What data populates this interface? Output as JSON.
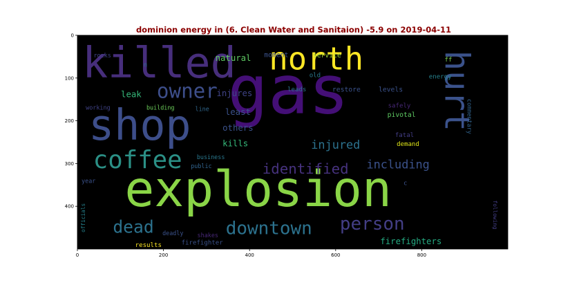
{
  "chart_data": {
    "type": "wordcloud",
    "title": "dominion energy in (6. Clean Water and Sanitaion) -5.9 on 2019-04-11",
    "title_color": "#8b0000",
    "background_color": "#000000",
    "xlim": [
      0,
      1000
    ],
    "ylim": [
      500,
      0
    ],
    "x_ticks": [
      0,
      200,
      400,
      600,
      800
    ],
    "y_ticks": [
      0,
      100,
      200,
      300,
      400
    ],
    "words": [
      {
        "text": "gas",
        "color": "#440f76",
        "x": 490,
        "y": 128,
        "size": 150
      },
      {
        "text": "explosion",
        "color": "#8ad547",
        "x": 420,
        "y": 360,
        "size": 110
      },
      {
        "text": "killed",
        "color": "#472e7c",
        "x": 190,
        "y": 65,
        "size": 95
      },
      {
        "text": "shop",
        "color": "#3d4e8a",
        "x": 145,
        "y": 210,
        "size": 95
      },
      {
        "text": "north",
        "color": "#fde725",
        "x": 555,
        "y": 55,
        "size": 70
      },
      {
        "text": "hurt",
        "color": "#3b528b",
        "x": 880,
        "y": 130,
        "size": 75,
        "rotate": 90
      },
      {
        "text": "coffee",
        "color": "#2b9086",
        "x": 140,
        "y": 292,
        "size": 55
      },
      {
        "text": "owner",
        "color": "#3d4e8a",
        "x": 255,
        "y": 130,
        "size": 45
      },
      {
        "text": "dead",
        "color": "#2c728e",
        "x": 130,
        "y": 448,
        "size": 38
      },
      {
        "text": "downtown",
        "color": "#2c728e",
        "x": 445,
        "y": 452,
        "size": 40
      },
      {
        "text": "person",
        "color": "#433e85",
        "x": 685,
        "y": 442,
        "size": 40
      },
      {
        "text": "identified",
        "color": "#46327e",
        "x": 530,
        "y": 312,
        "size": 32
      },
      {
        "text": "injured",
        "color": "#2c728e",
        "x": 600,
        "y": 256,
        "size": 26
      },
      {
        "text": "including",
        "color": "#3b528b",
        "x": 745,
        "y": 302,
        "size": 26
      },
      {
        "text": "firefighters",
        "color": "#25ab82",
        "x": 775,
        "y": 482,
        "size": 19
      },
      {
        "text": "injures",
        "color": "#404387",
        "x": 365,
        "y": 136,
        "size": 19
      },
      {
        "text": "natural",
        "color": "#5ec962",
        "x": 362,
        "y": 53,
        "size": 19
      },
      {
        "text": "least",
        "color": "#3b528b",
        "x": 373,
        "y": 180,
        "size": 19
      },
      {
        "text": "others",
        "color": "#3b528b",
        "x": 373,
        "y": 217,
        "size": 19
      },
      {
        "text": "kills",
        "color": "#35b779",
        "x": 367,
        "y": 253,
        "size": 19
      },
      {
        "text": "leak",
        "color": "#35b779",
        "x": 125,
        "y": 138,
        "size": 19
      },
      {
        "text": "moment",
        "color": "#3b528b",
        "x": 462,
        "y": 47,
        "size": 15
      },
      {
        "text": "service",
        "color": "#a0da39",
        "x": 580,
        "y": 48,
        "size": 15
      },
      {
        "text": "old",
        "color": "#2a788e",
        "x": 552,
        "y": 95,
        "size": 14
      },
      {
        "text": "leads",
        "color": "#2c728e",
        "x": 510,
        "y": 128,
        "size": 14
      },
      {
        "text": "restore",
        "color": "#3b528b",
        "x": 625,
        "y": 128,
        "size": 15
      },
      {
        "text": "levels",
        "color": "#3b528b",
        "x": 728,
        "y": 128,
        "size": 15
      },
      {
        "text": "ff",
        "color": "#7ad151",
        "x": 862,
        "y": 58,
        "size": 14
      },
      {
        "text": "energy",
        "color": "#26828e",
        "x": 843,
        "y": 98,
        "size": 14
      },
      {
        "text": "commentary",
        "color": "#32648e",
        "x": 911,
        "y": 190,
        "size": 13,
        "rotate": 90
      },
      {
        "text": "safely",
        "color": "#482878",
        "x": 748,
        "y": 166,
        "size": 14
      },
      {
        "text": "pivotal",
        "color": "#5ec962",
        "x": 753,
        "y": 187,
        "size": 15
      },
      {
        "text": "fatal",
        "color": "#433e85",
        "x": 760,
        "y": 235,
        "size": 14
      },
      {
        "text": "demand",
        "color": "#dde318",
        "x": 768,
        "y": 256,
        "size": 14
      },
      {
        "text": "rocks",
        "color": "#404387",
        "x": 58,
        "y": 47,
        "size": 13
      },
      {
        "text": "n",
        "color": "#31688e",
        "x": 158,
        "y": 70,
        "size": 14
      },
      {
        "text": "working",
        "color": "#404387",
        "x": 48,
        "y": 169,
        "size": 13
      },
      {
        "text": "building",
        "color": "#6ccd5a",
        "x": 193,
        "y": 169,
        "size": 13
      },
      {
        "text": "line",
        "color": "#31688e",
        "x": 290,
        "y": 172,
        "size": 13
      },
      {
        "text": "business",
        "color": "#2a788e",
        "x": 310,
        "y": 285,
        "size": 13
      },
      {
        "text": "public",
        "color": "#32648e",
        "x": 288,
        "y": 306,
        "size": 13
      },
      {
        "text": "year",
        "color": "#3b528b",
        "x": 26,
        "y": 341,
        "size": 13
      },
      {
        "text": "officials",
        "color": "#26828e",
        "x": 14,
        "y": 427,
        "size": 12,
        "rotate": 270
      },
      {
        "text": "c",
        "color": "#3b528b",
        "x": 762,
        "y": 347,
        "size": 14
      },
      {
        "text": "following",
        "color": "#433e85",
        "x": 970,
        "y": 420,
        "size": 12,
        "rotate": 90
      },
      {
        "text": "deadly",
        "color": "#3b528b",
        "x": 222,
        "y": 463,
        "size": 13
      },
      {
        "text": "shakes",
        "color": "#482878",
        "x": 303,
        "y": 468,
        "size": 13
      },
      {
        "text": "results",
        "color": "#fde725",
        "x": 165,
        "y": 492,
        "size": 14
      },
      {
        "text": "firefighter",
        "color": "#3b528b",
        "x": 290,
        "y": 486,
        "size": 14
      }
    ]
  }
}
